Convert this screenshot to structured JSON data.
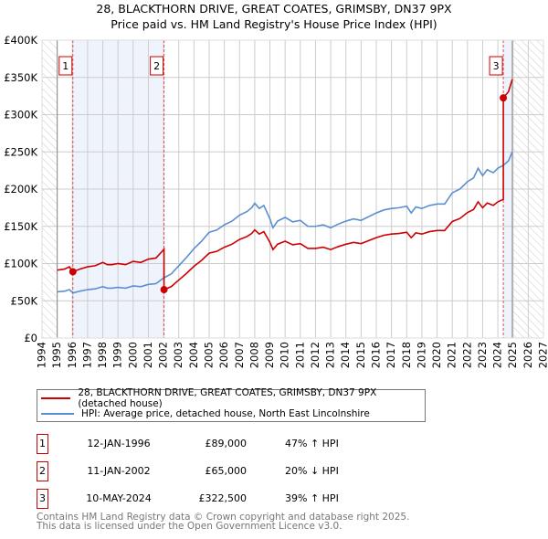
{
  "title_line1": "28, BLACKTHORN DRIVE, GREAT COATES, GRIMSBY, DN37 9PX",
  "title_line2": "Price paid vs. HM Land Registry's House Price Index (HPI)",
  "chart_data": {
    "type": "line",
    "xlim": [
      1994,
      2027
    ],
    "ylim": [
      0,
      400000
    ],
    "x_ticks": [
      1994,
      1995,
      1996,
      1997,
      1998,
      1999,
      2000,
      2001,
      2002,
      2003,
      2004,
      2005,
      2006,
      2007,
      2008,
      2009,
      2010,
      2011,
      2012,
      2013,
      2014,
      2015,
      2016,
      2017,
      2018,
      2019,
      2020,
      2021,
      2022,
      2023,
      2024,
      2025,
      2026,
      2027
    ],
    "y_ticks": [
      0,
      50000,
      100000,
      150000,
      200000,
      250000,
      300000,
      350000,
      400000
    ],
    "y_tick_labels": [
      "£0",
      "£50K",
      "£100K",
      "£150K",
      "£200K",
      "£250K",
      "£300K",
      "£350K",
      "£400K"
    ],
    "grid": true,
    "data_start": 1995.0,
    "data_end": 2024.95,
    "colors": {
      "property": "#cc0000",
      "hpi": "#5b8fd0",
      "shade": "#eef3fc"
    },
    "hpi_series": {
      "name": "HPI: Average price, detached house, North East Lincolnshire",
      "x": [
        1995,
        1995.5,
        1995.8,
        1996.03,
        1996.5,
        1997,
        1997.5,
        1998,
        1998.3,
        1998.6,
        1999,
        1999.5,
        2000,
        2000.5,
        2001,
        2001.5,
        2002.03,
        2002.5,
        2003,
        2003.5,
        2004,
        2004.5,
        2005,
        2005.5,
        2006,
        2006.5,
        2007,
        2007.5,
        2007.8,
        2008,
        2008.3,
        2008.6,
        2009,
        2009.2,
        2009.5,
        2010,
        2010.5,
        2011,
        2011.5,
        2012,
        2012.5,
        2013,
        2013.5,
        2014,
        2014.5,
        2015,
        2015.5,
        2016,
        2016.5,
        2017,
        2017.5,
        2018,
        2018.3,
        2018.6,
        2019,
        2019.5,
        2020,
        2020.5,
        2021,
        2021.5,
        2022,
        2022.4,
        2022.7,
        2023,
        2023.3,
        2023.7,
        2024,
        2024.36,
        2024.7,
        2024.95
      ],
      "values": [
        62000,
        63000,
        65000,
        60500,
        63000,
        65000,
        66000,
        69000,
        67000,
        67000,
        68000,
        67000,
        70000,
        69000,
        72000,
        73000,
        81000,
        86000,
        97000,
        108000,
        120000,
        130000,
        142000,
        145000,
        152000,
        157000,
        165000,
        170000,
        175000,
        181000,
        174000,
        178000,
        160000,
        148000,
        157000,
        162000,
        156000,
        158000,
        150000,
        150000,
        152000,
        148000,
        153000,
        157000,
        160000,
        158000,
        163000,
        168000,
        172000,
        174000,
        175000,
        177000,
        168000,
        176000,
        174000,
        178000,
        180000,
        180000,
        195000,
        200000,
        210000,
        215000,
        228000,
        218000,
        226000,
        222000,
        228000,
        232000,
        238000,
        250000
      ]
    },
    "property_series": {
      "name": "28, BLACKTHORN DRIVE, GREAT COATES, GRIMSBY, DN37 9PX (detached house)"
    },
    "sales": [
      {
        "id": "1",
        "x": 1996.03,
        "price": 89000
      },
      {
        "id": "2",
        "x": 2002.03,
        "price": 65000
      },
      {
        "id": "3",
        "x": 2024.36,
        "price": 322500
      }
    ]
  },
  "legend": {
    "property": "28, BLACKTHORN DRIVE, GREAT COATES, GRIMSBY, DN37 9PX (detached house)",
    "hpi": "HPI: Average price, detached house, North East Lincolnshire"
  },
  "transactions": [
    {
      "num": "1",
      "date": "12-JAN-1996",
      "price": "£89,000",
      "hpi": "47% ↑ HPI"
    },
    {
      "num": "2",
      "date": "11-JAN-2002",
      "price": "£65,000",
      "hpi": "20% ↓ HPI"
    },
    {
      "num": "3",
      "date": "10-MAY-2024",
      "price": "£322,500",
      "hpi": "39% ↑ HPI"
    }
  ],
  "footer": {
    "line1": "Contains HM Land Registry data © Crown copyright and database right 2025.",
    "line2": "This data is licensed under the Open Government Licence v3.0."
  }
}
